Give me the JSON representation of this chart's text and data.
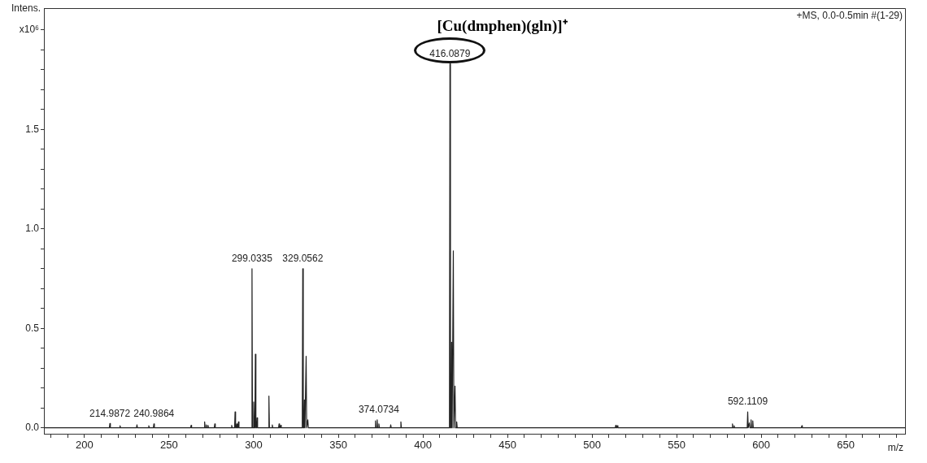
{
  "chart_data": {
    "type": "line",
    "title": "[Cu(dmphen)(gln)]⁺",
    "xlabel": "m/z",
    "ylabel": "Intens.",
    "xlim": [
      176,
      685
    ],
    "ylim": [
      -0.03,
      2.11
    ],
    "xticks": [
      {
        "value": 180,
        "label": null
      },
      {
        "value": 190,
        "label": null
      },
      200,
      {
        "value": 210,
        "label": null
      },
      {
        "value": 220,
        "label": null
      },
      {
        "value": 230,
        "label": null
      },
      {
        "value": 240,
        "label": null
      },
      250,
      {
        "value": 260,
        "label": null
      },
      {
        "value": 270,
        "label": null
      },
      {
        "value": 280,
        "label": null
      },
      {
        "value": 290,
        "label": null
      },
      300,
      {
        "value": 310,
        "label": null
      },
      {
        "value": 320,
        "label": null
      },
      {
        "value": 330,
        "label": null
      },
      {
        "value": 340,
        "label": null
      },
      350,
      {
        "value": 360,
        "label": null
      },
      {
        "value": 370,
        "label": null
      },
      {
        "value": 380,
        "label": null
      },
      {
        "value": 390,
        "label": null
      },
      400,
      {
        "value": 410,
        "label": null
      },
      {
        "value": 420,
        "label": null
      },
      {
        "value": 430,
        "label": null
      },
      {
        "value": 440,
        "label": null
      },
      450,
      {
        "value": 460,
        "label": null
      },
      {
        "value": 470,
        "label": null
      },
      {
        "value": 480,
        "label": null
      },
      {
        "value": 490,
        "label": null
      },
      500,
      {
        "value": 510,
        "label": null
      },
      {
        "value": 520,
        "label": null
      },
      {
        "value": 530,
        "label": null
      },
      {
        "value": 540,
        "label": null
      },
      550,
      {
        "value": 560,
        "label": null
      },
      {
        "value": 570,
        "label": null
      },
      {
        "value": 580,
        "label": null
      },
      {
        "value": 590,
        "label": null
      },
      600,
      {
        "value": 610,
        "label": null
      },
      {
        "value": 620,
        "label": null
      },
      {
        "value": 630,
        "label": null
      },
      {
        "value": 640,
        "label": null
      },
      650,
      {
        "value": 660,
        "label": null
      },
      {
        "value": 670,
        "label": null
      },
      {
        "value": 680,
        "label": null
      }
    ],
    "yticks": [
      {
        "value": 0,
        "label": "0.0"
      },
      {
        "value": 0.1,
        "label": null
      },
      {
        "value": 0.2,
        "label": null
      },
      {
        "value": 0.3,
        "label": null
      },
      {
        "value": 0.4,
        "label": null
      },
      0.5,
      {
        "value": 0.6,
        "label": null
      },
      {
        "value": 0.7,
        "label": null
      },
      {
        "value": 0.8,
        "label": null
      },
      {
        "value": 0.9,
        "label": null
      },
      {
        "value": 1,
        "label": "1.0"
      },
      {
        "value": 1.1,
        "label": null
      },
      {
        "value": 1.2,
        "label": null
      },
      {
        "value": 1.3,
        "label": null
      },
      {
        "value": 1.4,
        "label": null
      },
      1.5,
      {
        "value": 1.6,
        "label": null
      },
      {
        "value": 1.7,
        "label": null
      },
      {
        "value": 1.8,
        "label": null
      },
      {
        "value": 1.9,
        "label": null
      },
      {
        "value": 2,
        "label": "x10⁶"
      }
    ],
    "grid": false,
    "legend": false,
    "marker": "none",
    "line_style": "solid",
    "series": [
      {
        "color": "#222222",
        "x": [
          176,
          214.7,
          215,
          215.3,
          220.7,
          221,
          221.3,
          230.7,
          231,
          231.3,
          237.7,
          238,
          238.3,
          240.7,
          241,
          241.3,
          262.7,
          263,
          263.3,
          270.7,
          271,
          271.3,
          271.7,
          272,
          272.3,
          272.7,
          273,
          273.3,
          276.7,
          277,
          277.3,
          286.7,
          287,
          287.3,
          288.7,
          289,
          289.3,
          289.7,
          290,
          290.3,
          290.7,
          291,
          291.3,
          298.7,
          299,
          299.3,
          299.7,
          300,
          300.3,
          300.7,
          301,
          301.3,
          301.7,
          302,
          302.3,
          308.7,
          309,
          309.3,
          310.7,
          311,
          311.3,
          314.7,
          315,
          315.3,
          315.7,
          316,
          316.3,
          328.7,
          329,
          329.3,
          329.7,
          330,
          330.3,
          330.7,
          331,
          331.3,
          331.7,
          332,
          332.3,
          371.7,
          372,
          372.3,
          372.7,
          373,
          373.3,
          373.7,
          374,
          374.3,
          380.7,
          381,
          381.3,
          386.7,
          387,
          387.3,
          415.7,
          416,
          416.3,
          416.7,
          417,
          417.3,
          417.7,
          418,
          418.3,
          418.7,
          419,
          419.3,
          419.7,
          420,
          420.3,
          513.7,
          514,
          514.3,
          514.7,
          515,
          515.3,
          582.7,
          583,
          583.3,
          583.7,
          584,
          584.3,
          591.7,
          592,
          592.3,
          592.7,
          593,
          593.3,
          593.7,
          594,
          594.3,
          594.7,
          595,
          595.3,
          623.7,
          624,
          624.3,
          685
        ],
        "values": [
          0,
          0,
          0.022,
          0,
          0,
          0.01,
          0,
          0,
          0.015,
          0,
          0,
          0.01,
          0,
          0,
          0.02,
          0,
          0,
          0.012,
          0,
          0,
          0.03,
          0,
          0,
          0.015,
          0,
          0,
          0.012,
          0,
          0,
          0.02,
          0,
          0,
          0.012,
          0,
          0,
          0.08,
          0,
          0,
          0.02,
          0,
          0,
          0.03,
          0,
          0,
          0.8,
          0,
          0,
          0.13,
          0,
          0,
          0.37,
          0,
          0,
          0.05,
          0,
          0,
          0.16,
          0,
          0,
          0.015,
          0,
          0,
          0.02,
          0,
          0,
          0.012,
          0,
          0,
          0.8,
          0,
          0,
          0.14,
          0,
          0,
          0.36,
          0,
          0,
          0.04,
          0,
          0,
          0.035,
          0,
          0,
          0.04,
          0,
          0,
          0.02,
          0,
          0,
          0.015,
          0,
          0,
          0.03,
          0,
          0,
          1.83,
          0,
          0,
          0.43,
          0,
          0,
          0.89,
          0,
          0,
          0.21,
          0,
          0,
          0.03,
          0,
          0,
          0.012,
          0,
          0,
          0.01,
          0,
          0,
          0.02,
          0,
          0,
          0.01,
          0,
          0,
          0.08,
          0,
          0,
          0.025,
          0,
          0,
          0.04,
          0,
          0,
          0.035,
          0,
          0,
          0.01,
          0,
          0
        ]
      }
    ],
    "annotations": [
      {
        "text": "214.9872",
        "x": 215,
        "y": 0.022
      },
      {
        "text": "240.9864",
        "x": 241,
        "y": 0.02
      },
      {
        "text": "299.0335",
        "x": 299,
        "y": 0.8
      },
      {
        "text": "329.0562",
        "x": 329,
        "y": 0.8
      },
      {
        "text": "374.0734",
        "x": 374,
        "y": 0.04
      },
      {
        "text": "416.0879",
        "x": 416,
        "y": 1.83
      },
      {
        "text": "592.1109",
        "x": 592,
        "y": 0.08
      },
      "+MS, 0.0-0.5min #(1-29)"
    ]
  }
}
